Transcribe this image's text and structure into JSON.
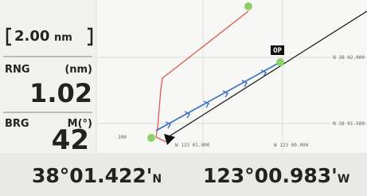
{
  "scale": {
    "value": "2.00",
    "unit": "nm"
  },
  "range": {
    "label": "RNG",
    "unit": "(nm)",
    "value": "1.02"
  },
  "bearing": {
    "label": "BRG",
    "unit": "M(°)",
    "value": "42"
  },
  "map": {
    "waypoint": "OP",
    "lat_labels": [
      "N 38 02.000",
      "N 38 01.500"
    ],
    "lon_labels": [
      "W 123 01.000",
      "W 123 00.000"
    ],
    "edge_label": "300"
  },
  "position": {
    "lat": "38°01.422'",
    "lat_hemi": "N",
    "lon": "123°00.983'",
    "lon_hemi": "W"
  }
}
